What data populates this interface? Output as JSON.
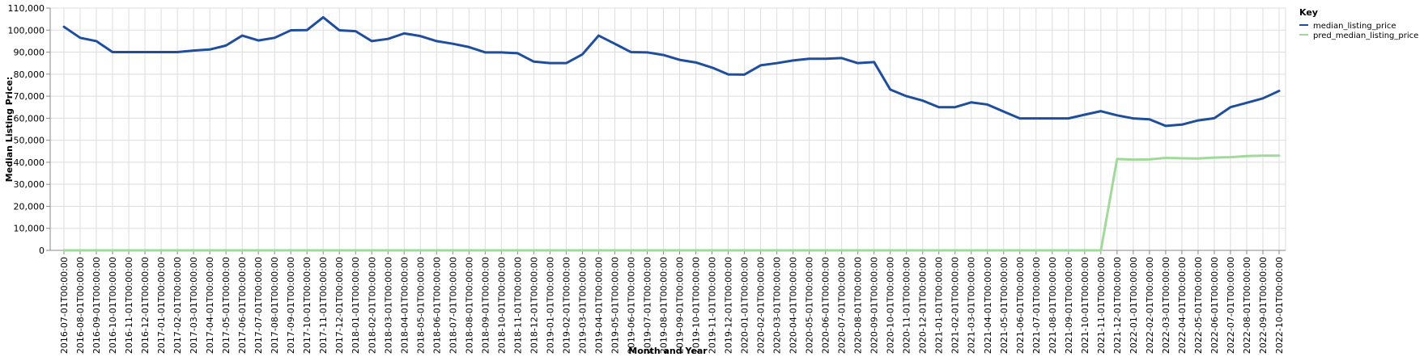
{
  "chart_data": {
    "type": "line",
    "title": "",
    "xlabel": "Month and Year",
    "ylabel": "Median Listing Price:",
    "ylim": [
      0,
      110000
    ],
    "y_ticks": [
      "0",
      "10,000",
      "20,000",
      "30,000",
      "40,000",
      "50,000",
      "60,000",
      "70,000",
      "80,000",
      "90,000",
      "100,000",
      "110,000"
    ],
    "grid": true,
    "legend": {
      "title": "Key",
      "position": "top-right"
    },
    "x": [
      "2016-07-01T00:00:00",
      "2016-08-01T00:00:00",
      "2016-09-01T00:00:00",
      "2016-10-01T00:00:00",
      "2016-11-01T00:00:00",
      "2016-12-01T00:00:00",
      "2017-01-01T00:00:00",
      "2017-02-01T00:00:00",
      "2017-03-01T00:00:00",
      "2017-04-01T00:00:00",
      "2017-05-01T00:00:00",
      "2017-06-01T00:00:00",
      "2017-07-01T00:00:00",
      "2017-08-01T00:00:00",
      "2017-09-01T00:00:00",
      "2017-10-01T00:00:00",
      "2017-11-01T00:00:00",
      "2017-12-01T00:00:00",
      "2018-01-01T00:00:00",
      "2018-02-01T00:00:00",
      "2018-03-01T00:00:00",
      "2018-04-01T00:00:00",
      "2018-05-01T00:00:00",
      "2018-06-01T00:00:00",
      "2018-07-01T00:00:00",
      "2018-08-01T00:00:00",
      "2018-09-01T00:00:00",
      "2018-10-01T00:00:00",
      "2018-11-01T00:00:00",
      "2018-12-01T00:00:00",
      "2019-01-01T00:00:00",
      "2019-02-01T00:00:00",
      "2019-03-01T00:00:00",
      "2019-04-01T00:00:00",
      "2019-05-01T00:00:00",
      "2019-06-01T00:00:00",
      "2019-07-01T00:00:00",
      "2019-08-01T00:00:00",
      "2019-09-01T00:00:00",
      "2019-10-01T00:00:00",
      "2019-11-01T00:00:00",
      "2019-12-01T00:00:00",
      "2020-01-01T00:00:00",
      "2020-02-01T00:00:00",
      "2020-03-01T00:00:00",
      "2020-04-01T00:00:00",
      "2020-05-01T00:00:00",
      "2020-06-01T00:00:00",
      "2020-07-01T00:00:00",
      "2020-08-01T00:00:00",
      "2020-09-01T00:00:00",
      "2020-10-01T00:00:00",
      "2020-11-01T00:00:00",
      "2020-12-01T00:00:00",
      "2021-01-01T00:00:00",
      "2021-02-01T00:00:00",
      "2021-03-01T00:00:00",
      "2021-04-01T00:00:00",
      "2021-05-01T00:00:00",
      "2021-06-01T00:00:00",
      "2021-07-01T00:00:00",
      "2021-08-01T00:00:00",
      "2021-09-01T00:00:00",
      "2021-10-01T00:00:00",
      "2021-11-01T00:00:00",
      "2021-12-01T00:00:00",
      "2022-01-01T00:00:00",
      "2022-02-01T00:00:00",
      "2022-03-01T00:00:00",
      "2022-04-01T00:00:00",
      "2022-05-01T00:00:00",
      "2022-06-01T00:00:00",
      "2022-07-01T00:00:00",
      "2022-08-01T00:00:00",
      "2022-09-01T00:00:00",
      "2022-10-01T00:00:00"
    ],
    "series": [
      {
        "name": "median_listing_price",
        "color": "#1f4e9c",
        "values": [
          101500,
          96500,
          95000,
          90000,
          90000,
          90000,
          90000,
          90000,
          90700,
          91200,
          93000,
          97500,
          95300,
          96500,
          99900,
          100000,
          105800,
          99900,
          99500,
          95000,
          96000,
          98500,
          97300,
          95000,
          93800,
          92300,
          89900,
          89900,
          89500,
          85700,
          85000,
          85000,
          89000,
          97500,
          93800,
          90000,
          89900,
          88700,
          86500,
          85300,
          83000,
          79900,
          79800,
          84000,
          85000,
          86200,
          87000,
          87000,
          87300,
          85000,
          85500,
          73000,
          70000,
          68000,
          65000,
          65000,
          67200,
          66200,
          63000,
          59900,
          59900,
          59900,
          59900,
          61600,
          63200,
          61300,
          59900,
          59500,
          56500,
          57100,
          59000,
          60000,
          65000,
          67000,
          69000,
          72400
        ]
      },
      {
        "name": "pred_median_listing_price",
        "color": "#a1d99b",
        "values": [
          0,
          0,
          0,
          0,
          0,
          0,
          0,
          0,
          0,
          0,
          0,
          0,
          0,
          0,
          0,
          0,
          0,
          0,
          0,
          0,
          0,
          0,
          0,
          0,
          0,
          0,
          0,
          0,
          0,
          0,
          0,
          0,
          0,
          0,
          0,
          0,
          0,
          0,
          0,
          0,
          0,
          0,
          0,
          0,
          0,
          0,
          0,
          0,
          0,
          0,
          0,
          0,
          0,
          0,
          0,
          0,
          0,
          0,
          0,
          0,
          0,
          0,
          0,
          0,
          0,
          41500,
          41200,
          41300,
          42000,
          41800,
          41700,
          42100,
          42300,
          42800,
          43000,
          43000
        ]
      }
    ]
  }
}
